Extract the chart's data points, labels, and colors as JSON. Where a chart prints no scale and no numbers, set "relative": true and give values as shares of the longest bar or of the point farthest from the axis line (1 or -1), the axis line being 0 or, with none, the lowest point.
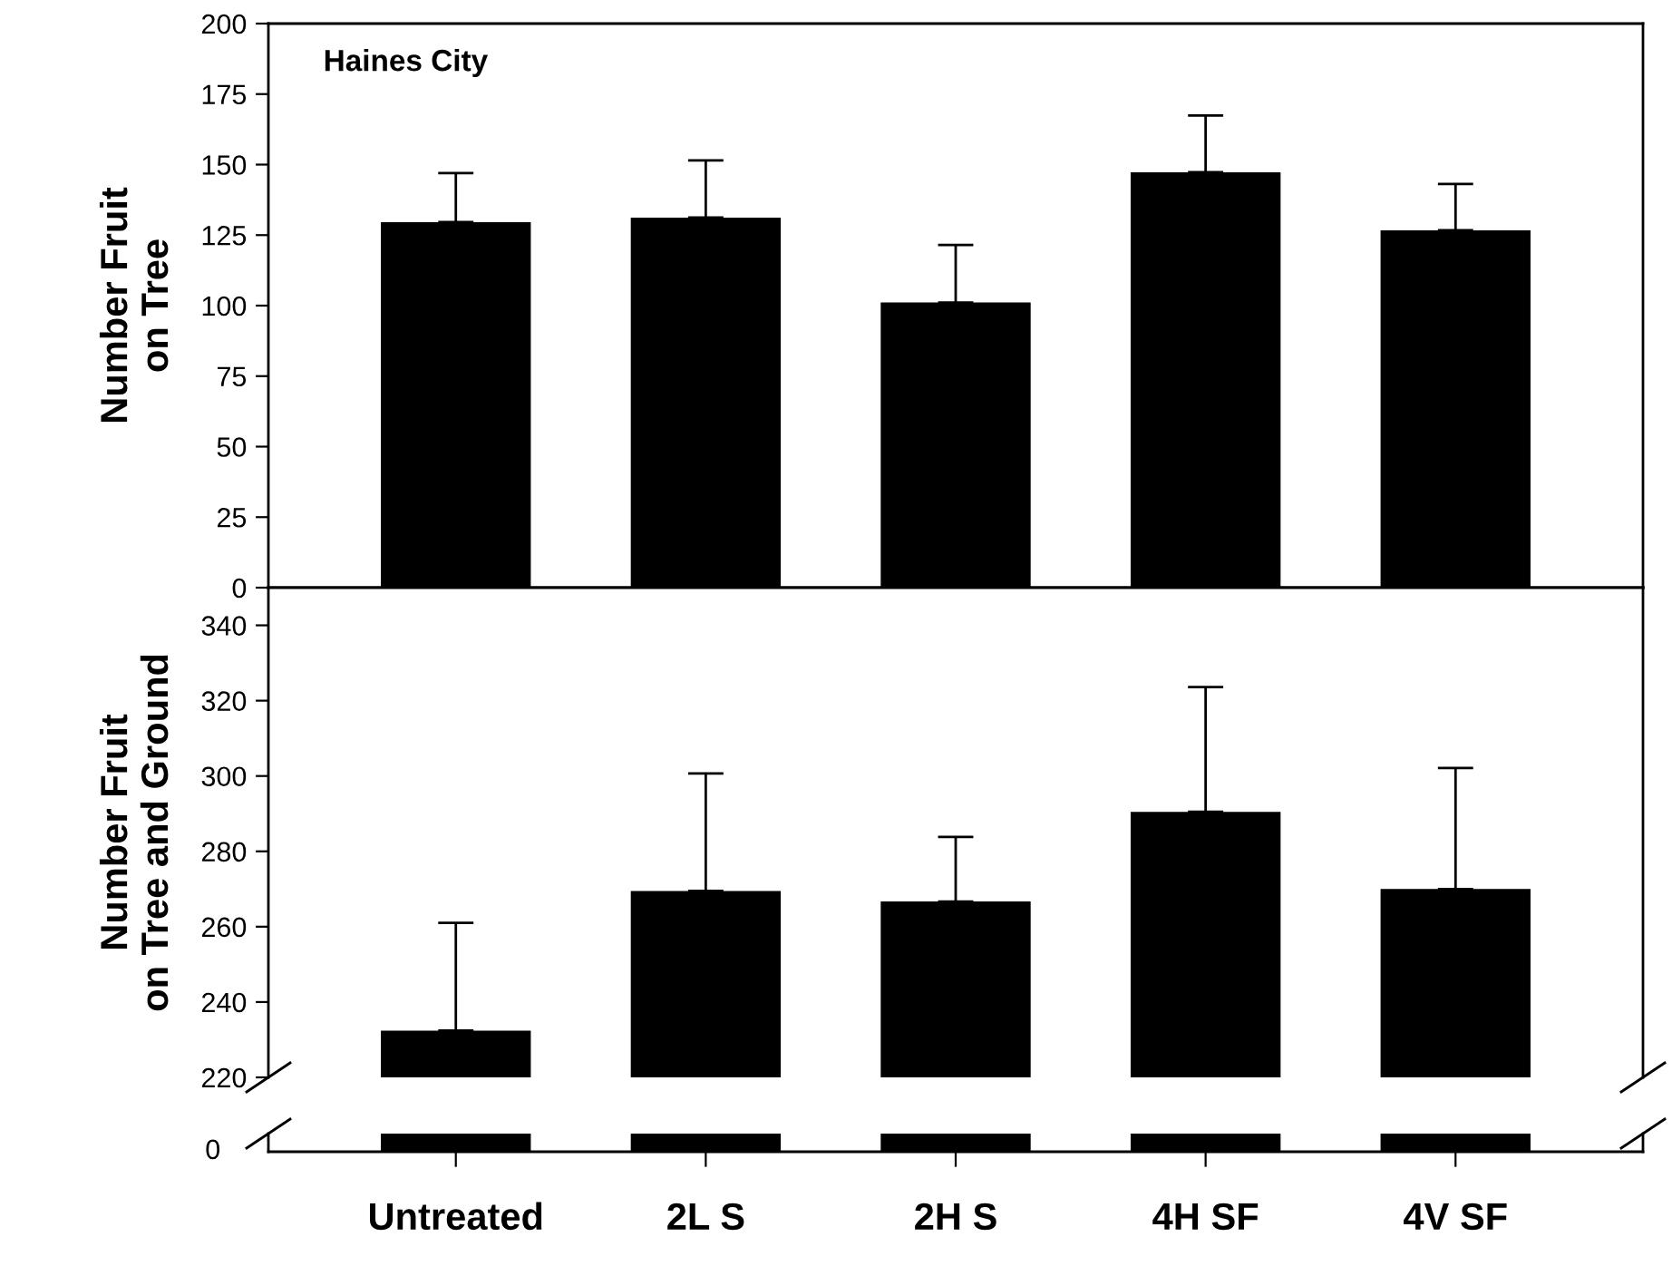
{
  "chart_data": [
    {
      "type": "bar",
      "categories": [
        null,
        null,
        null,
        null,
        null
      ],
      "values": [
        129.6,
        131.2,
        101.1,
        147.3,
        126.7
      ],
      "errors": [
        [
          129.6,
          147.0
        ],
        [
          131.2,
          151.5
        ],
        [
          101.1,
          121.5
        ],
        [
          147.3,
          167.4
        ],
        [
          126.7,
          143.1
        ]
      ],
      "color": "#000000",
      "ylabel": "Number Fruit\non Tree",
      "annotations": [
        "Haines City"
      ],
      "ylim": [
        0,
        200
      ],
      "yticks": [
        0,
        25,
        50,
        75,
        100,
        125,
        150,
        175,
        200
      ],
      "tick_labels": "y"
    },
    {
      "type": "bar",
      "categories": [
        null,
        null,
        null,
        null,
        null
      ],
      "values": [
        232.4,
        269.5,
        266.7,
        290.5,
        270.0
      ],
      "errors": [
        [
          232.4,
          261.0
        ],
        [
          269.5,
          300.7
        ],
        [
          266.7,
          283.8
        ],
        [
          290.5,
          323.6
        ],
        [
          270.0,
          302.1
        ]
      ],
      "color": "#000000",
      "ylabel": "Number Fruit\non Tree and Ground",
      "ylim": [
        220,
        350
      ],
      "yticks": [
        220,
        240,
        260,
        280,
        300,
        320,
        340
      ],
      "tick_labels": "y"
    },
    {
      "type": "bar",
      "categories": [
        "Untreated",
        "2L S",
        "2H S",
        "4H SF",
        "4V SF"
      ],
      "values": [
        1,
        1,
        1,
        1,
        1
      ],
      "relative": true,
      "color": "#000000",
      "annotations": [
        "0"
      ]
    }
  ]
}
